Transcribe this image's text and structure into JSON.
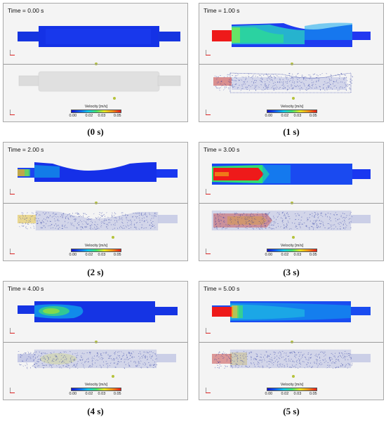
{
  "legend": {
    "title": "Velocity [m/s]",
    "ticks": [
      "0.00",
      "0.02",
      "0.03",
      "0.05"
    ]
  },
  "colors": {
    "bar_color_stops": [
      "#1010d0",
      "#1060f0",
      "#10c8e8",
      "#40e070",
      "#e8e820",
      "#f09018",
      "#e81818"
    ],
    "particle_color": "#1a2a9a",
    "inactive_fluid": "#dedede"
  },
  "panels": [
    {
      "time_label": "Time = 0.00 s",
      "caption": "(0 s)"
    },
    {
      "time_label": "Time = 1.00 s",
      "caption": "(1 s)"
    },
    {
      "time_label": "Time = 2.00 s",
      "caption": "(2 s)"
    },
    {
      "time_label": "Time = 3.00 s",
      "caption": "(3 s)"
    },
    {
      "time_label": "Time = 4.00 s",
      "caption": "(4 s)"
    },
    {
      "time_label": "Time = 5.00 s",
      "caption": "(5 s)"
    }
  ]
}
